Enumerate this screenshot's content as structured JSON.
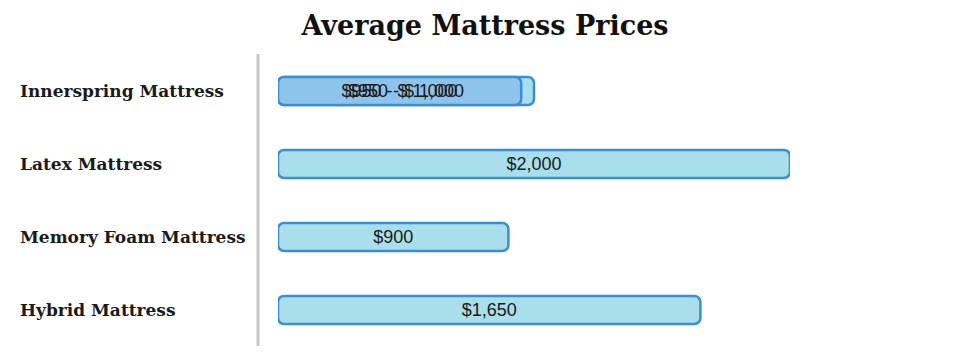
{
  "chart_data": {
    "type": "bar",
    "title": "Average Mattress Prices",
    "orientation": "horizontal",
    "categories": [
      "Innerspring Mattress",
      "Latex Mattress",
      "Memory Foam Mattress",
      "Hybrid Mattress"
    ],
    "values": [
      1000,
      2000,
      900,
      1650
    ],
    "value_labels": [
      "$950 - $ 1,000",
      "$2,000",
      "$900",
      "$1,650"
    ],
    "low": [
      950,
      null,
      null,
      null
    ],
    "color": "#a9deeb",
    "xlim": [
      0,
      2000
    ],
    "tick_labels": "y",
    "data_labels": true,
    "grid": false
  }
}
